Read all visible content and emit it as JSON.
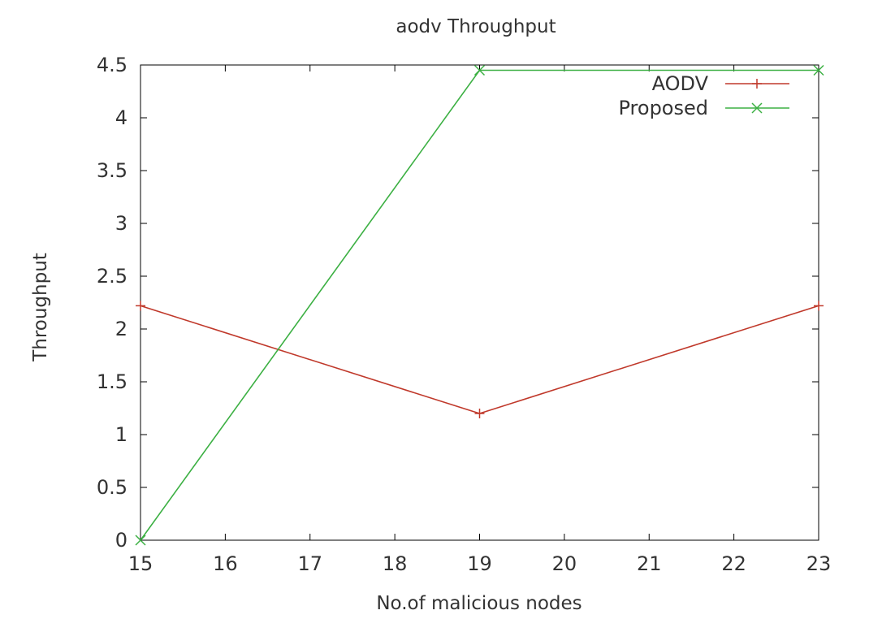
{
  "chart_data": {
    "type": "line",
    "title": "aodv Throughput",
    "xlabel": "No.of malicious nodes",
    "ylabel": "Throughput",
    "xlim": [
      15,
      23
    ],
    "ylim": [
      0,
      4.5
    ],
    "xticks": [
      "15",
      "16",
      "17",
      "18",
      "19",
      "20",
      "21",
      "22",
      "23"
    ],
    "yticks": [
      "0",
      "0.5",
      "1",
      "1.5",
      "2",
      "2.5",
      "3",
      "3.5",
      "4",
      "4.5"
    ],
    "grid": false,
    "legend_position": "top-right",
    "series": [
      {
        "name": "AODV",
        "color": "#c0392b",
        "marker": "plus",
        "x": [
          15,
          19,
          23
        ],
        "y": [
          2.22,
          1.2,
          2.22
        ]
      },
      {
        "name": "Proposed",
        "color": "#3cb043",
        "marker": "cross",
        "x": [
          15,
          19,
          23
        ],
        "y": [
          0,
          4.45,
          4.45
        ]
      }
    ]
  }
}
